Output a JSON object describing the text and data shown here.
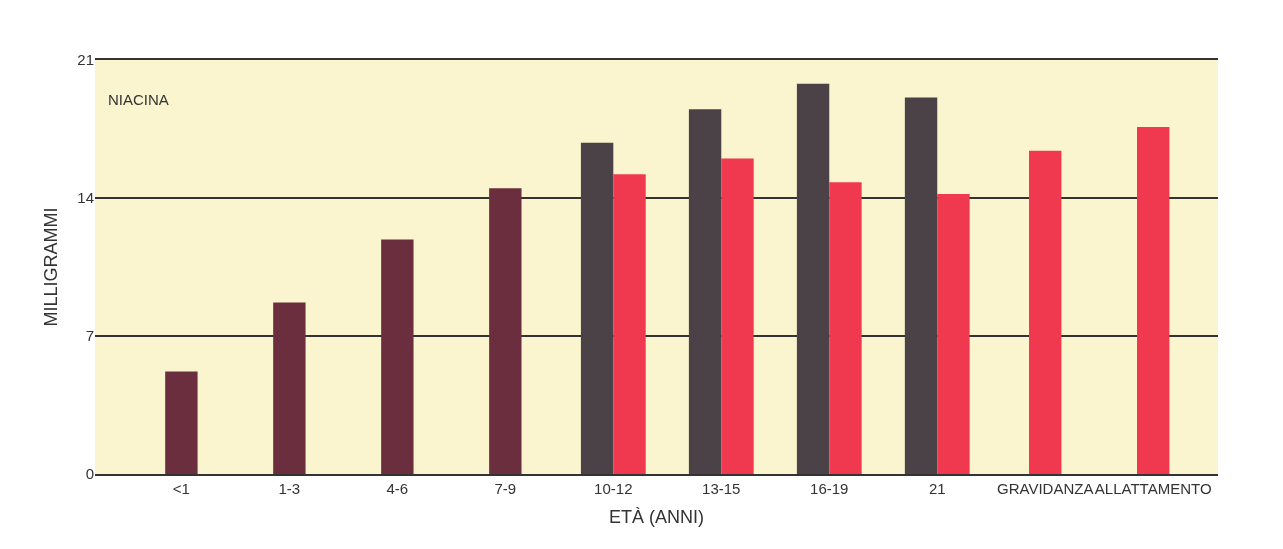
{
  "chart_data": {
    "type": "bar",
    "title": "NIACINA",
    "xlabel": "ETÀ (ANNI)",
    "ylabel": "MILLIGRAMMI",
    "categories": [
      "<1",
      "1-3",
      "4-6",
      "7-9",
      "10-12",
      "13-15",
      "16-19",
      "21",
      "GRAVIDANZA",
      "ALLATTAMENTO"
    ],
    "series": [
      {
        "colors": [
          "#6b2e3e",
          "#6b2e3e",
          "#6b2e3e",
          "#6b2e3e",
          "#4a4246",
          "#4a4246",
          "#4a4246",
          "#4a4246",
          null,
          null
        ],
        "values": [
          5.2,
          8.7,
          11.9,
          14.5,
          16.8,
          18.5,
          19.8,
          19.1,
          null,
          null
        ]
      },
      {
        "color": "#f0384f",
        "values": [
          null,
          null,
          null,
          null,
          15.2,
          16,
          14.8,
          14.2,
          16.4,
          17.6
        ]
      }
    ],
    "ylim": [
      0,
      21
    ],
    "yticks": [
      0,
      7,
      14,
      21
    ],
    "grid": "y"
  }
}
